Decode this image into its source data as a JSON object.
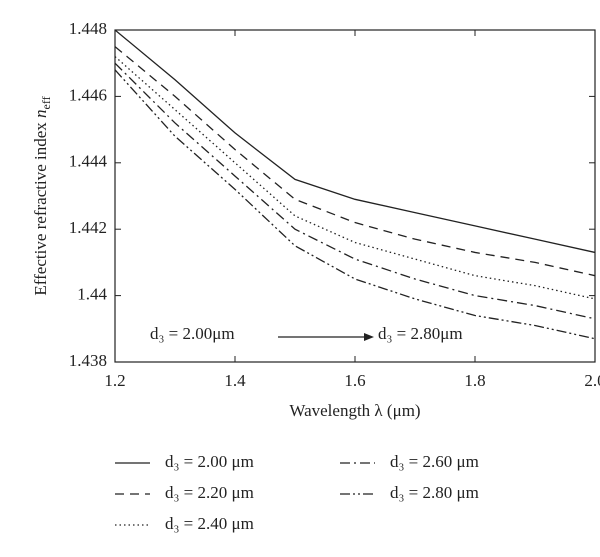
{
  "chart_data": {
    "type": "line",
    "xlabel": "Wavelength λ (μm)",
    "ylabel": [
      "Effective refractive index ",
      "n",
      "eff"
    ],
    "x": [
      1.2,
      1.3,
      1.4,
      1.5,
      1.6,
      1.7,
      1.8,
      1.9,
      2.0
    ],
    "series": [
      {
        "name": "d₃ = 2.00 μm",
        "color": "#222222",
        "dash": "none",
        "values": [
          1.448,
          1.4465,
          1.4449,
          1.4435,
          1.4429,
          1.4425,
          1.4421,
          1.4417,
          1.4413
        ]
      },
      {
        "name": "d₃ = 2.20 μm",
        "color": "#222222",
        "dash": "9,6",
        "values": [
          1.4475,
          1.446,
          1.4444,
          1.4429,
          1.4422,
          1.4417,
          1.4413,
          1.441,
          1.4406
        ]
      },
      {
        "name": "d₃ = 2.40 μm",
        "color": "#222222",
        "dash": "1.5,3",
        "values": [
          1.4472,
          1.4456,
          1.444,
          1.4424,
          1.4416,
          1.4411,
          1.4406,
          1.4403,
          1.4399
        ]
      },
      {
        "name": "d₃ = 2.60 μm",
        "color": "#222222",
        "dash": "10,4,2,4",
        "values": [
          1.447,
          1.4452,
          1.4436,
          1.442,
          1.4411,
          1.4405,
          1.44,
          1.4397,
          1.4393
        ]
      },
      {
        "name": "d₃ = 2.80 μm",
        "color": "#222222",
        "dash": "10,3,2,3,2,3",
        "values": [
          1.4468,
          1.4448,
          1.4432,
          1.4415,
          1.4405,
          1.4399,
          1.4394,
          1.4391,
          1.4387
        ]
      }
    ],
    "xlim": [
      1.2,
      2.0
    ],
    "xticks": [
      1.2,
      1.4,
      1.6,
      1.8,
      {
        "value": 2.0,
        "label": "2.0"
      }
    ],
    "ylim": [
      1.438,
      1.448
    ],
    "yticks": [
      1.438,
      1.44,
      1.442,
      1.444,
      1.446,
      1.448
    ],
    "annotations": [
      "d₃ = 2.00μm",
      "d₃ = 2.80μm"
    ],
    "grid": false
  }
}
